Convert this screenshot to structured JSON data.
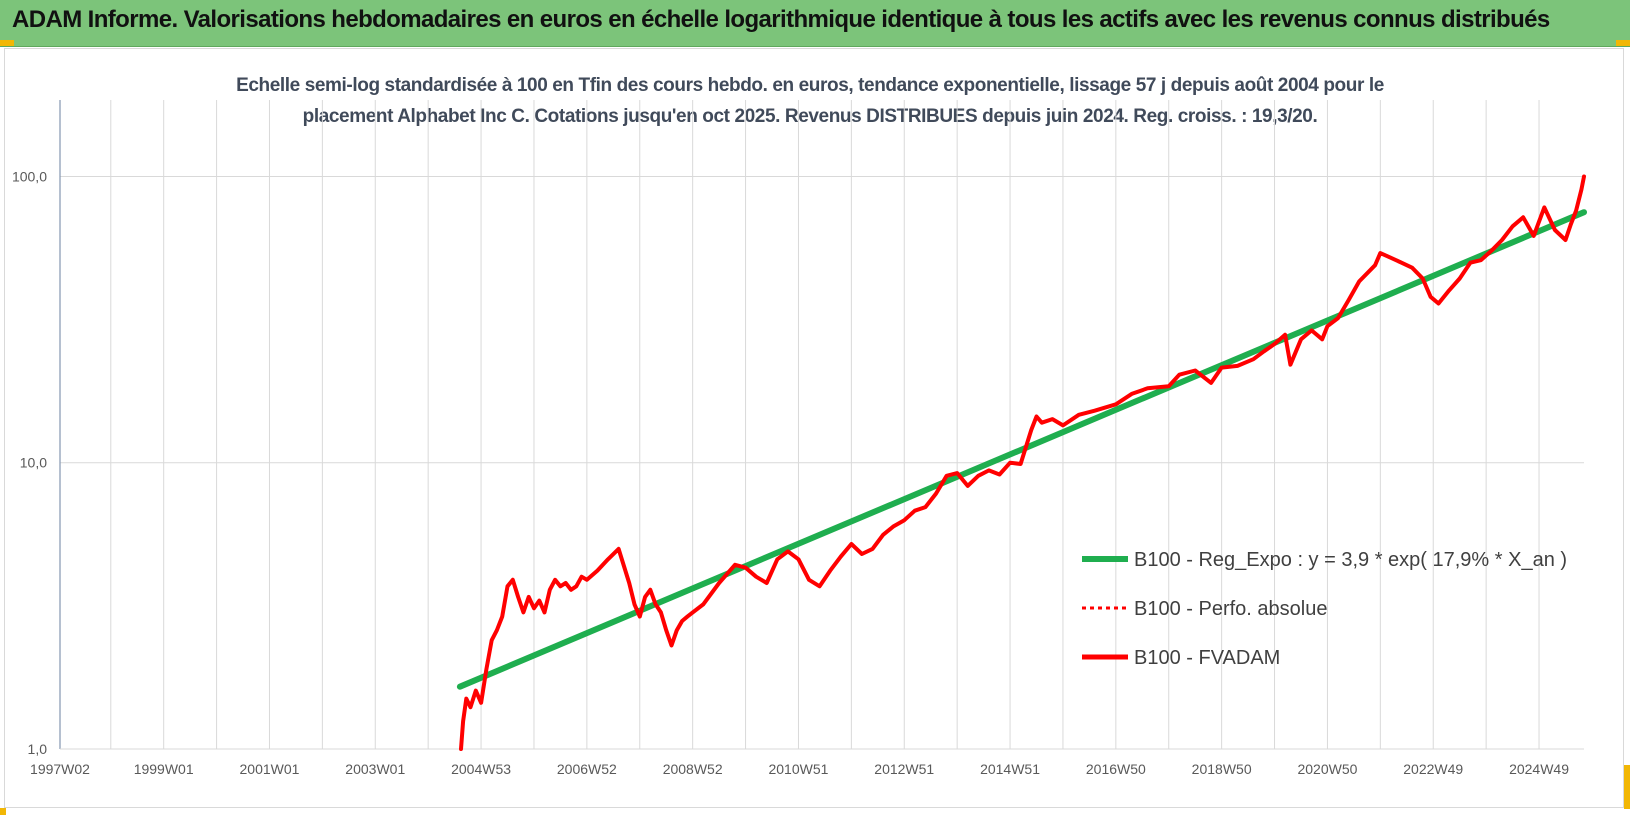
{
  "banner": {
    "title": "ADAM Informe. Valorisations hebdomadaires en euros en échelle logarithmique identique à tous les actifs avec les revenus connus distribués"
  },
  "chart_data": {
    "type": "line",
    "title_line1": "Echelle semi-log standardisée à 100 en Tfin des cours hebdo. en euros, tendance exponentielle, lissage 57 j depuis août 2004 pour le",
    "title_line2": "placement Alphabet Inc C. Cotations jusqu'en oct 2025. Revenus DISTRIBUES depuis juin 2024. Reg. croiss. : 19,3/20.",
    "y_scale": "log",
    "ylim": [
      1,
      185
    ],
    "y_ticks": [
      {
        "value": 1,
        "label": "1,0"
      },
      {
        "value": 10,
        "label": "10,0"
      },
      {
        "value": 100,
        "label": "100,0"
      }
    ],
    "xlim": [
      1997.04,
      2025.85
    ],
    "x_ticks": [
      {
        "value": 1997.04,
        "label": "1997W02"
      },
      {
        "value": 1999.0,
        "label": "1999W01"
      },
      {
        "value": 2001.0,
        "label": "2001W01"
      },
      {
        "value": 2003.0,
        "label": "2003W01"
      },
      {
        "value": 2005.0,
        "label": "2004W53"
      },
      {
        "value": 2007.0,
        "label": "2006W52"
      },
      {
        "value": 2009.0,
        "label": "2008W52"
      },
      {
        "value": 2011.0,
        "label": "2010W51"
      },
      {
        "value": 2013.0,
        "label": "2012W51"
      },
      {
        "value": 2015.0,
        "label": "2014W51"
      },
      {
        "value": 2017.0,
        "label": "2016W50"
      },
      {
        "value": 2019.0,
        "label": "2018W50"
      },
      {
        "value": 2021.0,
        "label": "2020W50"
      },
      {
        "value": 2023.0,
        "label": "2022W49"
      },
      {
        "value": 2025.0,
        "label": "2024W49"
      }
    ],
    "grid": true,
    "legend_position": "bottom-right",
    "colors": {
      "regression": "#1fae4f",
      "fvadam": "#ff0000",
      "perfo": "#ff0000",
      "grid": "#d9d9d9",
      "axis": "#8497b0"
    },
    "series": [
      {
        "name": "B100 - Reg_Expo : y = 3,9 * exp( 17,9% *  X_an )",
        "style": "solid",
        "color": "#1fae4f",
        "x": [
          2004.6,
          2025.85
        ],
        "y": [
          1.65,
          75
        ]
      },
      {
        "name": "B100 - Perfo. absolue",
        "style": "dotted",
        "color": "#ff0000",
        "x": [],
        "y": []
      },
      {
        "name": "B100 - FVADAM",
        "style": "solid",
        "color": "#ff0000",
        "x": [
          2004.62,
          2004.66,
          2004.72,
          2004.8,
          2004.9,
          2005.0,
          2005.1,
          2005.2,
          2005.3,
          2005.4,
          2005.5,
          2005.6,
          2005.7,
          2005.8,
          2005.9,
          2006.0,
          2006.1,
          2006.2,
          2006.3,
          2006.4,
          2006.5,
          2006.6,
          2006.7,
          2006.8,
          2006.9,
          2007.0,
          2007.2,
          2007.4,
          2007.6,
          2007.8,
          2007.9,
          2008.0,
          2008.1,
          2008.2,
          2008.3,
          2008.4,
          2008.5,
          2008.6,
          2008.7,
          2008.8,
          2008.9,
          2009.0,
          2009.2,
          2009.5,
          2009.8,
          2010.0,
          2010.2,
          2010.4,
          2010.6,
          2010.8,
          2011.0,
          2011.2,
          2011.4,
          2011.6,
          2011.8,
          2012.0,
          2012.2,
          2012.4,
          2012.6,
          2012.8,
          2013.0,
          2013.2,
          2013.4,
          2013.6,
          2013.8,
          2014.0,
          2014.2,
          2014.4,
          2014.6,
          2014.8,
          2015.0,
          2015.2,
          2015.4,
          2015.5,
          2015.6,
          2015.8,
          2016.0,
          2016.3,
          2016.6,
          2017.0,
          2017.3,
          2017.6,
          2018.0,
          2018.2,
          2018.5,
          2018.8,
          2019.0,
          2019.3,
          2019.6,
          2019.8,
          2020.0,
          2020.2,
          2020.3,
          2020.5,
          2020.7,
          2020.9,
          2021.0,
          2021.2,
          2021.4,
          2021.6,
          2021.9,
          2022.0,
          2022.2,
          2022.4,
          2022.6,
          2022.8,
          2022.95,
          2023.1,
          2023.3,
          2023.5,
          2023.7,
          2023.9,
          2024.1,
          2024.3,
          2024.5,
          2024.7,
          2024.9,
          2025.1,
          2025.3,
          2025.5,
          2025.6,
          2025.7,
          2025.8,
          2025.85
        ],
        "y": [
          1.0,
          1.25,
          1.5,
          1.4,
          1.6,
          1.45,
          1.9,
          2.4,
          2.6,
          2.9,
          3.7,
          3.9,
          3.4,
          3.0,
          3.4,
          3.1,
          3.3,
          3.0,
          3.6,
          3.9,
          3.7,
          3.8,
          3.6,
          3.7,
          4.0,
          3.9,
          4.2,
          4.6,
          5.0,
          3.8,
          3.2,
          2.9,
          3.4,
          3.6,
          3.2,
          3.0,
          2.6,
          2.3,
          2.6,
          2.8,
          2.9,
          3.0,
          3.2,
          3.8,
          4.4,
          4.3,
          4.0,
          3.8,
          4.6,
          4.9,
          4.6,
          3.9,
          3.7,
          4.2,
          4.7,
          5.2,
          4.8,
          5.0,
          5.6,
          6.0,
          6.3,
          6.8,
          7.0,
          7.8,
          9.0,
          9.2,
          8.3,
          9.0,
          9.4,
          9.1,
          10.0,
          9.9,
          13.0,
          14.5,
          13.8,
          14.2,
          13.5,
          14.7,
          15.2,
          16.0,
          17.4,
          18.2,
          18.5,
          20.3,
          21.0,
          19.0,
          21.5,
          21.8,
          23.0,
          24.5,
          26.0,
          28.0,
          22.0,
          27.0,
          29.0,
          27.0,
          30.0,
          32.0,
          37.0,
          43.0,
          49.0,
          54.0,
          52.0,
          50.0,
          48.0,
          44.0,
          38.0,
          36.0,
          40.0,
          44.0,
          50.0,
          51.0,
          55.0,
          60.0,
          67.0,
          72.0,
          62.0,
          78.0,
          65.0,
          60.0,
          68.0,
          76.0,
          90.0,
          100.0
        ]
      }
    ]
  }
}
